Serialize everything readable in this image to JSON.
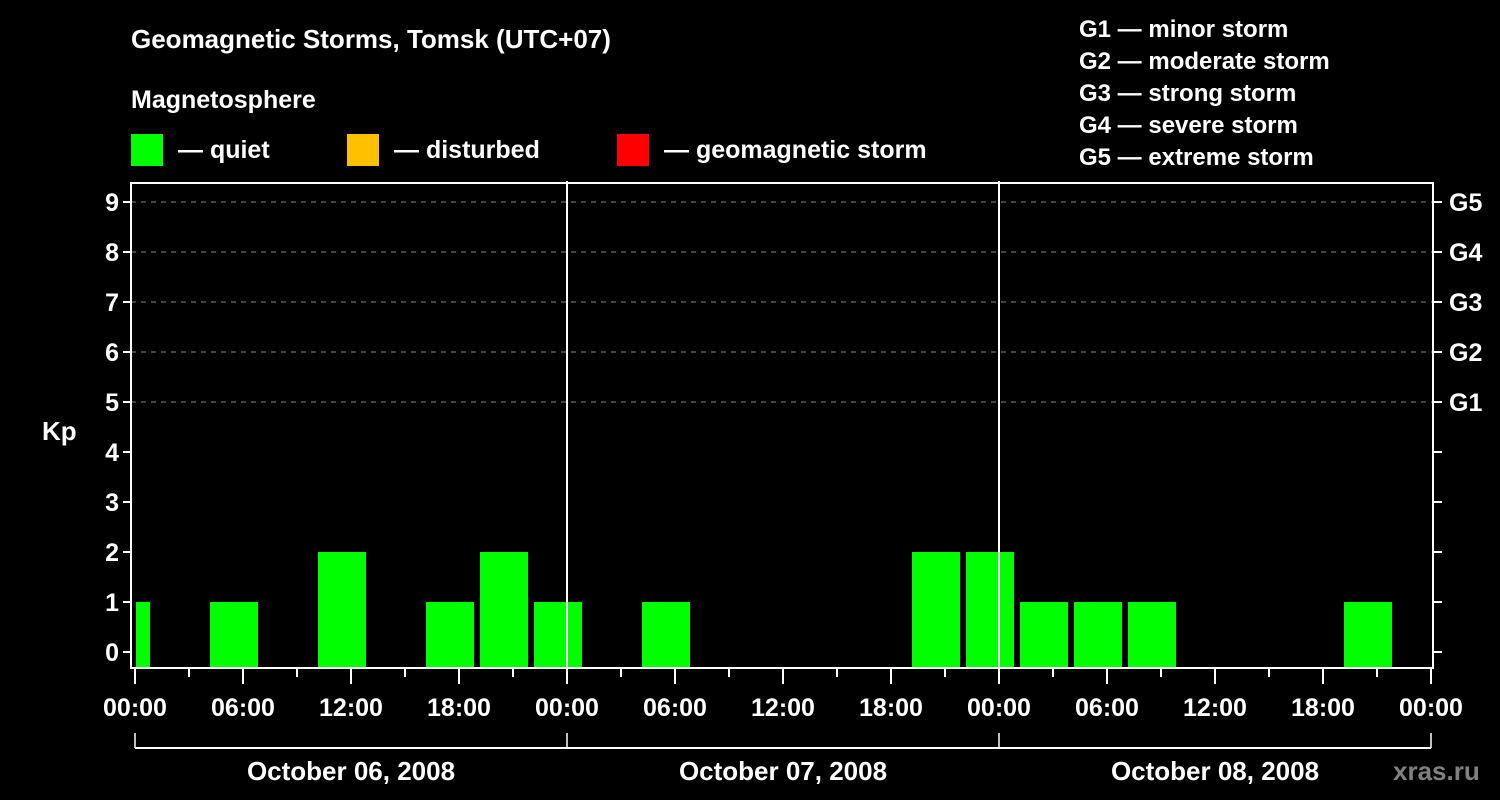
{
  "header": {
    "title": "Geomagnetic Storms, Tomsk (UTC+07)",
    "subtitle": "Magnetosphere"
  },
  "legend": {
    "items": [
      {
        "label": "— quiet",
        "color": "#00ff00"
      },
      {
        "label": "— disturbed",
        "color": "#ffc000"
      },
      {
        "label": "— geomagnetic storm",
        "color": "#ff0000"
      }
    ]
  },
  "storm_scale": [
    "G1 — minor storm",
    "G2 — moderate storm",
    "G3 — strong storm",
    "G4 — severe storm",
    "G5 — extreme storm"
  ],
  "watermark": "xras.ru",
  "chart_data": {
    "type": "bar",
    "title": "Geomagnetic Storms, Tomsk (UTC+07)",
    "subtitle": "Magnetosphere",
    "ylabel": "Kp",
    "xlabel": "",
    "ylim": [
      0,
      9
    ],
    "yticks": [
      0,
      1,
      2,
      3,
      4,
      5,
      6,
      7,
      8,
      9
    ],
    "right_axis_labels": [
      {
        "kp": 5,
        "label": "G1"
      },
      {
        "kp": 6,
        "label": "G2"
      },
      {
        "kp": 7,
        "label": "G3"
      },
      {
        "kp": 8,
        "label": "G4"
      },
      {
        "kp": 9,
        "label": "G5"
      }
    ],
    "grid": "dashed horizontal at Kp 5-9",
    "xtick_labels": [
      "00:00",
      "06:00",
      "12:00",
      "18:00",
      "00:00",
      "06:00",
      "12:00",
      "18:00",
      "00:00",
      "06:00",
      "12:00",
      "18:00",
      "00:00"
    ],
    "dates": [
      "October 06, 2008",
      "October 07, 2008",
      "October 08, 2008"
    ],
    "bin_hours": 3,
    "legend": [
      "quiet",
      "disturbed",
      "geomagnetic storm"
    ],
    "bars": [
      {
        "start_h": 0,
        "end_h": 1,
        "kp": 1,
        "status": "quiet"
      },
      {
        "start_h": 4,
        "end_h": 7,
        "kp": 1,
        "status": "quiet"
      },
      {
        "start_h": 10,
        "end_h": 13,
        "kp": 2,
        "status": "quiet"
      },
      {
        "start_h": 16,
        "end_h": 19,
        "kp": 1,
        "status": "quiet"
      },
      {
        "start_h": 19,
        "end_h": 22,
        "kp": 2,
        "status": "quiet"
      },
      {
        "start_h": 22,
        "end_h": 25,
        "kp": 1,
        "status": "quiet"
      },
      {
        "start_h": 28,
        "end_h": 31,
        "kp": 1,
        "status": "quiet"
      },
      {
        "start_h": 43,
        "end_h": 46,
        "kp": 2,
        "status": "quiet"
      },
      {
        "start_h": 46,
        "end_h": 49,
        "kp": 2,
        "status": "quiet"
      },
      {
        "start_h": 49,
        "end_h": 52,
        "kp": 1,
        "status": "quiet"
      },
      {
        "start_h": 52,
        "end_h": 55,
        "kp": 1,
        "status": "quiet"
      },
      {
        "start_h": 55,
        "end_h": 58,
        "kp": 1,
        "status": "quiet"
      },
      {
        "start_h": 67,
        "end_h": 70,
        "kp": 1,
        "status": "quiet"
      }
    ]
  }
}
